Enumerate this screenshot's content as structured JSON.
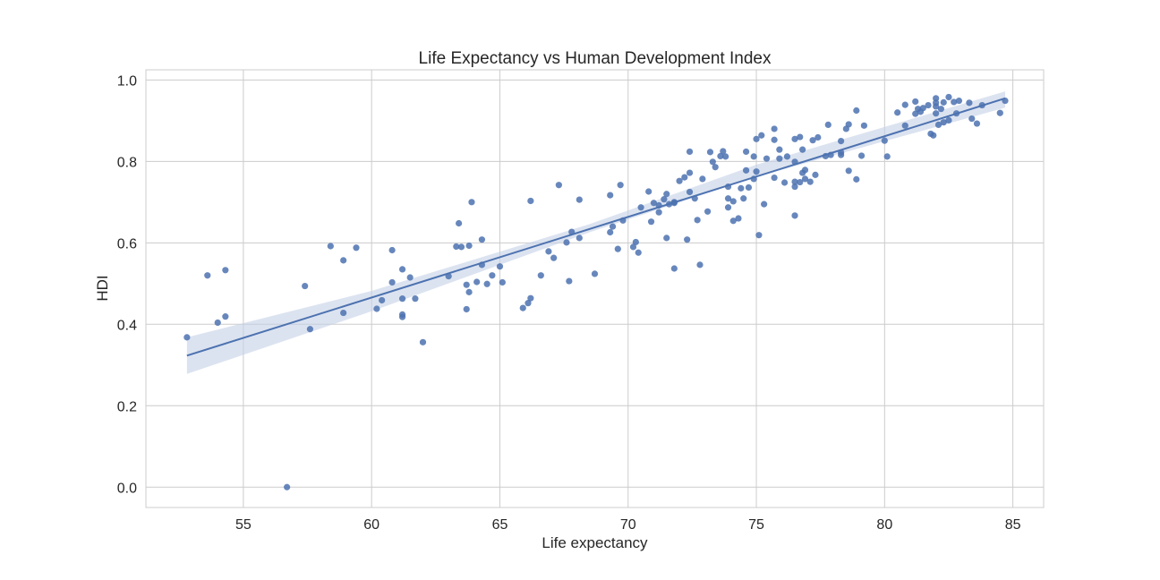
{
  "chart_data": {
    "type": "scatter",
    "title": "Life Expectancy vs Human Development Index",
    "xlabel": "Life expectancy",
    "ylabel": "HDI",
    "xlim": [
      51.2,
      86.2
    ],
    "ylim": [
      -0.05,
      1.025
    ],
    "xticks": [
      55,
      60,
      65,
      70,
      75,
      80,
      85
    ],
    "yticks": [
      0.0,
      0.2,
      0.4,
      0.6,
      0.8,
      1.0
    ],
    "ytick_labels": [
      "0.0",
      "0.2",
      "0.4",
      "0.6",
      "0.8",
      "1.0"
    ],
    "grid": true,
    "point_color": "#4c72b0",
    "line_color": "#4c72b0",
    "band_color": "#c5d0e6",
    "regression": {
      "x_start": 52.8,
      "x_end": 84.7,
      "y_start": 0.323,
      "y_end": 0.955
    },
    "confidence_band": {
      "x": [
        52.8,
        60,
        68.5,
        75,
        84.7
      ],
      "upper": [
        0.368,
        0.482,
        0.646,
        0.792,
        0.972
      ],
      "lower": [
        0.278,
        0.432,
        0.626,
        0.762,
        0.932
      ]
    },
    "points": [
      [
        52.8,
        0.368
      ],
      [
        53.6,
        0.52
      ],
      [
        54.0,
        0.404
      ],
      [
        54.3,
        0.533
      ],
      [
        54.3,
        0.419
      ],
      [
        56.7,
        0.0
      ],
      [
        57.4,
        0.494
      ],
      [
        57.6,
        0.388
      ],
      [
        58.4,
        0.592
      ],
      [
        58.9,
        0.557
      ],
      [
        58.9,
        0.428
      ],
      [
        59.4,
        0.588
      ],
      [
        60.2,
        0.438
      ],
      [
        60.4,
        0.459
      ],
      [
        60.8,
        0.582
      ],
      [
        60.8,
        0.503
      ],
      [
        61.2,
        0.535
      ],
      [
        61.2,
        0.424
      ],
      [
        61.2,
        0.418
      ],
      [
        61.2,
        0.463
      ],
      [
        61.5,
        0.515
      ],
      [
        61.7,
        0.463
      ],
      [
        62.0,
        0.356
      ],
      [
        63.0,
        0.518
      ],
      [
        63.3,
        0.591
      ],
      [
        63.4,
        0.648
      ],
      [
        63.5,
        0.59
      ],
      [
        63.7,
        0.437
      ],
      [
        63.7,
        0.497
      ],
      [
        63.8,
        0.593
      ],
      [
        63.8,
        0.479
      ],
      [
        63.9,
        0.7
      ],
      [
        64.1,
        0.504
      ],
      [
        64.3,
        0.608
      ],
      [
        64.3,
        0.546
      ],
      [
        64.5,
        0.499
      ],
      [
        64.7,
        0.52
      ],
      [
        65.0,
        0.542
      ],
      [
        65.1,
        0.503
      ],
      [
        65.9,
        0.44
      ],
      [
        66.1,
        0.452
      ],
      [
        66.2,
        0.703
      ],
      [
        66.2,
        0.464
      ],
      [
        66.6,
        0.52
      ],
      [
        66.9,
        0.579
      ],
      [
        67.1,
        0.563
      ],
      [
        67.3,
        0.742
      ],
      [
        67.6,
        0.601
      ],
      [
        67.7,
        0.506
      ],
      [
        67.8,
        0.627
      ],
      [
        68.1,
        0.706
      ],
      [
        68.1,
        0.612
      ],
      [
        68.7,
        0.524
      ],
      [
        69.3,
        0.717
      ],
      [
        69.3,
        0.626
      ],
      [
        69.4,
        0.64
      ],
      [
        69.6,
        0.585
      ],
      [
        69.7,
        0.742
      ],
      [
        69.8,
        0.655
      ],
      [
        70.2,
        0.59
      ],
      [
        70.3,
        0.602
      ],
      [
        70.4,
        0.576
      ],
      [
        70.5,
        0.687
      ],
      [
        70.8,
        0.726
      ],
      [
        70.9,
        0.652
      ],
      [
        71.0,
        0.698
      ],
      [
        71.2,
        0.692
      ],
      [
        71.2,
        0.675
      ],
      [
        71.4,
        0.707
      ],
      [
        71.5,
        0.72
      ],
      [
        71.5,
        0.612
      ],
      [
        71.6,
        0.695
      ],
      [
        71.8,
        0.698
      ],
      [
        71.8,
        0.7
      ],
      [
        71.8,
        0.537
      ],
      [
        72.0,
        0.752
      ],
      [
        72.2,
        0.761
      ],
      [
        72.3,
        0.608
      ],
      [
        72.4,
        0.824
      ],
      [
        72.4,
        0.725
      ],
      [
        72.4,
        0.772
      ],
      [
        72.6,
        0.709
      ],
      [
        72.7,
        0.656
      ],
      [
        72.8,
        0.546
      ],
      [
        72.9,
        0.757
      ],
      [
        73.1,
        0.677
      ],
      [
        73.2,
        0.823
      ],
      [
        73.3,
        0.799
      ],
      [
        73.4,
        0.786
      ],
      [
        73.6,
        0.813
      ],
      [
        73.7,
        0.825
      ],
      [
        73.8,
        0.812
      ],
      [
        73.9,
        0.738
      ],
      [
        73.9,
        0.709
      ],
      [
        73.9,
        0.687
      ],
      [
        74.1,
        0.654
      ],
      [
        74.1,
        0.702
      ],
      [
        74.3,
        0.66
      ],
      [
        74.4,
        0.734
      ],
      [
        74.5,
        0.709
      ],
      [
        74.6,
        0.824
      ],
      [
        74.6,
        0.778
      ],
      [
        74.7,
        0.736
      ],
      [
        74.9,
        0.812
      ],
      [
        74.9,
        0.757
      ],
      [
        75.0,
        0.855
      ],
      [
        75.0,
        0.775
      ],
      [
        75.1,
        0.619
      ],
      [
        75.2,
        0.864
      ],
      [
        75.3,
        0.695
      ],
      [
        75.4,
        0.807
      ],
      [
        75.7,
        0.88
      ],
      [
        75.7,
        0.853
      ],
      [
        75.7,
        0.76
      ],
      [
        75.9,
        0.807
      ],
      [
        75.9,
        0.829
      ],
      [
        76.1,
        0.748
      ],
      [
        76.2,
        0.812
      ],
      [
        76.5,
        0.855
      ],
      [
        76.5,
        0.75
      ],
      [
        76.5,
        0.738
      ],
      [
        76.5,
        0.799
      ],
      [
        76.5,
        0.667
      ],
      [
        76.7,
        0.749
      ],
      [
        76.7,
        0.86
      ],
      [
        76.8,
        0.772
      ],
      [
        76.8,
        0.829
      ],
      [
        76.9,
        0.757
      ],
      [
        76.9,
        0.779
      ],
      [
        77.1,
        0.75
      ],
      [
        77.2,
        0.852
      ],
      [
        77.3,
        0.767
      ],
      [
        77.4,
        0.859
      ],
      [
        77.7,
        0.813
      ],
      [
        77.8,
        0.89
      ],
      [
        77.9,
        0.816
      ],
      [
        78.3,
        0.85
      ],
      [
        78.3,
        0.816
      ],
      [
        78.3,
        0.822
      ],
      [
        78.5,
        0.88
      ],
      [
        78.6,
        0.891
      ],
      [
        78.6,
        0.777
      ],
      [
        78.9,
        0.925
      ],
      [
        78.9,
        0.756
      ],
      [
        79.1,
        0.814
      ],
      [
        79.2,
        0.888
      ],
      [
        80.0,
        0.851
      ],
      [
        80.1,
        0.812
      ],
      [
        80.5,
        0.92
      ],
      [
        80.8,
        0.939
      ],
      [
        80.8,
        0.888
      ],
      [
        81.2,
        0.947
      ],
      [
        81.2,
        0.917
      ],
      [
        81.3,
        0.929
      ],
      [
        81.4,
        0.922
      ],
      [
        81.5,
        0.931
      ],
      [
        81.7,
        0.938
      ],
      [
        81.8,
        0.868
      ],
      [
        81.9,
        0.864
      ],
      [
        82.0,
        0.918
      ],
      [
        82.0,
        0.944
      ],
      [
        82.0,
        0.955
      ],
      [
        82.0,
        0.935
      ],
      [
        82.1,
        0.89
      ],
      [
        82.2,
        0.929
      ],
      [
        82.3,
        0.945
      ],
      [
        82.3,
        0.896
      ],
      [
        82.5,
        0.901
      ],
      [
        82.5,
        0.958
      ],
      [
        82.7,
        0.946
      ],
      [
        82.8,
        0.918
      ],
      [
        82.9,
        0.949
      ],
      [
        83.3,
        0.944
      ],
      [
        83.4,
        0.905
      ],
      [
        83.6,
        0.893
      ],
      [
        83.8,
        0.938
      ],
      [
        84.5,
        0.919
      ],
      [
        84.7,
        0.949
      ]
    ]
  }
}
